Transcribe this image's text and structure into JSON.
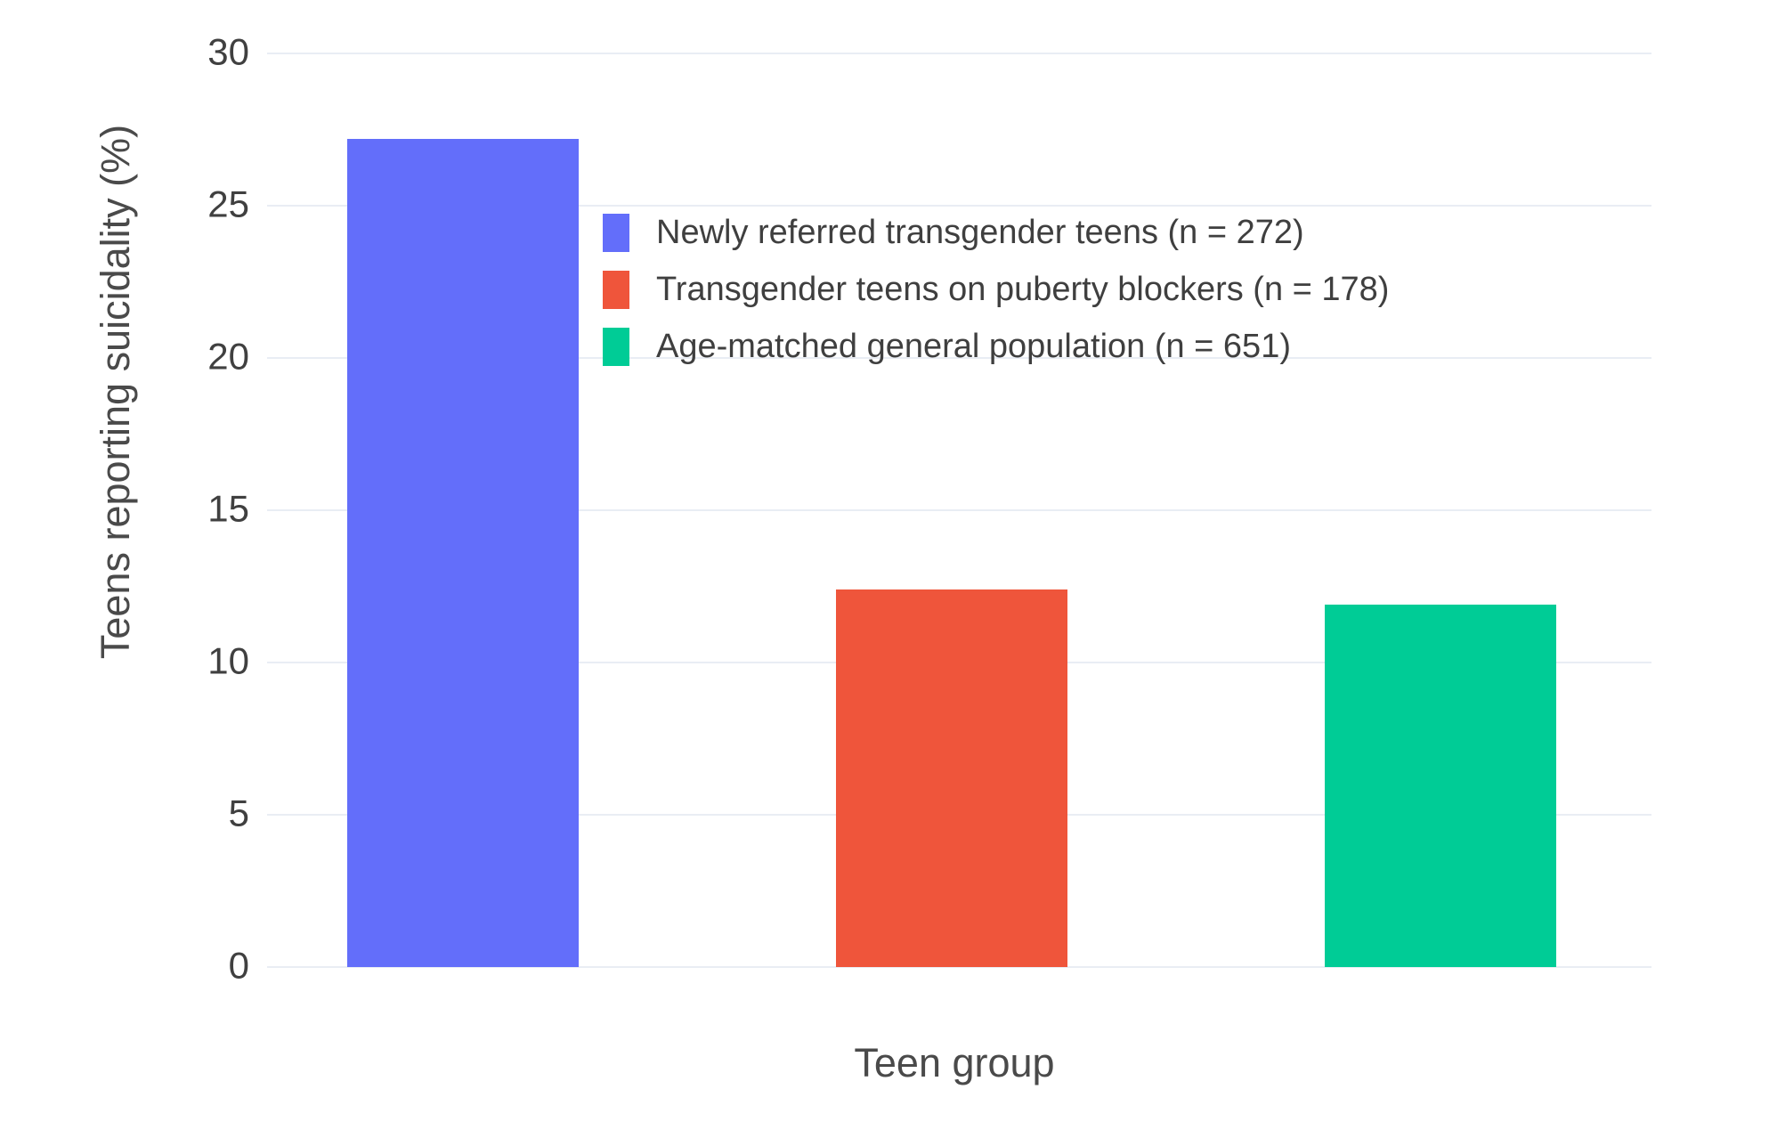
{
  "chart_data": {
    "type": "bar",
    "title": "",
    "xlabel": "Teen group",
    "ylabel": "Teens reporting suicidality (%)",
    "ylim": [
      0,
      30
    ],
    "yticks": [
      0,
      5,
      10,
      15,
      20,
      25,
      30
    ],
    "grid": true,
    "legend_position": "inside-top-center",
    "background_color": "#ffffff",
    "gridline_color": "#E9EDF4",
    "text_color": "#404040",
    "categories": [
      "Newly referred transgender teens (n = 272)",
      "Transgender teens on puberty blockers (n = 178)",
      "Age-matched general population (n = 651)"
    ],
    "series": [
      {
        "name": "Newly referred transgender teens (n = 272)",
        "value": 27.2,
        "color": "#636EFA"
      },
      {
        "name": "Transgender teens on puberty blockers (n = 178)",
        "value": 12.4,
        "color": "#EF553B"
      },
      {
        "name": "Age-matched general population (n = 651)",
        "value": 11.9,
        "color": "#00CC96"
      }
    ]
  }
}
